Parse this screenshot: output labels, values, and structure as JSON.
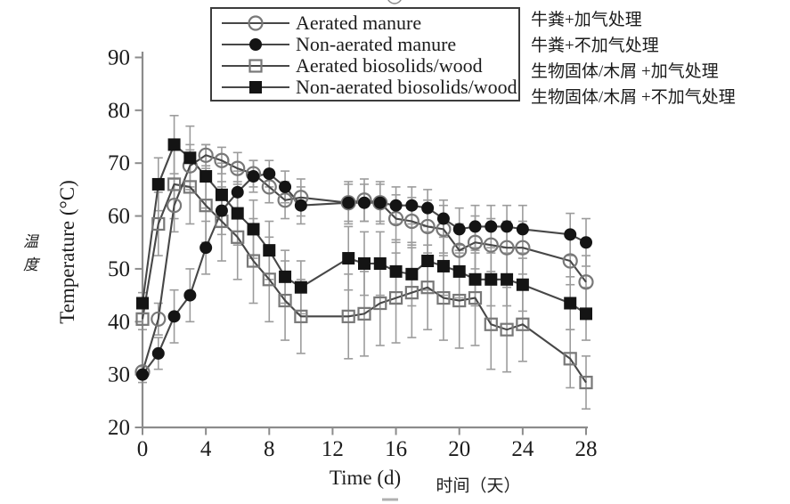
{
  "figure": {
    "y_axis": {
      "label_en": "Temperature (°C)",
      "label_zh": "温度",
      "ticks": [
        20,
        30,
        40,
        50,
        60,
        70,
        80,
        90
      ]
    },
    "x_axis": {
      "label_en": "Time (d)",
      "label_zh": "时间（天）",
      "ticks": [
        0,
        4,
        8,
        12,
        16,
        20,
        24,
        28
      ]
    }
  },
  "annotations": [
    "牛粪+加气处理",
    "牛粪+不加气处理",
    "生物固体/木屑 +加气处理",
    "生物固体/木屑 +不加气处理"
  ],
  "colors": {
    "marker_filled": "#141414",
    "marker_open_stroke": "#787878",
    "line": "#474747",
    "error_bar": "#9c9c9c",
    "axis": "#8c8c8c",
    "text": "#1c1c1c"
  },
  "chart_data": {
    "type": "line",
    "title": "",
    "xlabel": "Time (d)",
    "ylabel": "Temperature (°C)",
    "xlim": [
      0,
      28
    ],
    "ylim": [
      20,
      90
    ],
    "grid": false,
    "legend_position": "top-center-boxed",
    "x": [
      0,
      1,
      2,
      3,
      4,
      5,
      6,
      7,
      8,
      9,
      10,
      13,
      14,
      15,
      16,
      17,
      18,
      19,
      20,
      21,
      22,
      23,
      24,
      27,
      28
    ],
    "series": [
      {
        "name": "Aerated manure",
        "marker": "circle-open",
        "values": [
          30.5,
          40.5,
          62,
          69.5,
          71.5,
          70.5,
          69,
          68,
          65.5,
          63,
          63.5,
          62.5,
          63,
          62.5,
          59.5,
          59,
          58,
          57.5,
          53.5,
          55,
          54.5,
          54,
          54,
          51.5,
          47.5
        ],
        "err": [
          1,
          3,
          5,
          4,
          2,
          2.5,
          3,
          2.5,
          3,
          3.5,
          3.5,
          4,
          4,
          4,
          4.5,
          4.5,
          5,
          4.5,
          5,
          5,
          5,
          5,
          5,
          4.5,
          5
        ]
      },
      {
        "name": "Non-aerated manure",
        "marker": "circle-filled",
        "values": [
          30,
          34,
          41,
          45,
          54,
          61,
          64.5,
          67.5,
          68,
          65.5,
          62,
          62.5,
          62.5,
          62.5,
          62,
          62,
          61.5,
          59.5,
          57.5,
          58,
          58,
          58,
          57.5,
          56.5,
          55
        ],
        "err": [
          1.5,
          3,
          5,
          5,
          5,
          4.5,
          4,
          3,
          2.5,
          3,
          3.5,
          3.5,
          3.5,
          3.5,
          3.5,
          3.5,
          3.5,
          3.5,
          4,
          4,
          4,
          4,
          4.5,
          4,
          4.5
        ]
      },
      {
        "name": "Aerated biosolids/wood",
        "marker": "square-open",
        "values": [
          40.5,
          58.5,
          66,
          65.5,
          62,
          59,
          56,
          51.5,
          48,
          44,
          41,
          41,
          41.5,
          43.5,
          44.5,
          45.5,
          46.5,
          44.5,
          44,
          44.5,
          39.5,
          38.5,
          39.5,
          33,
          28.5
        ],
        "err": [
          2,
          6,
          6.5,
          7,
          7,
          7.5,
          8,
          8,
          8,
          7.5,
          7,
          8,
          8,
          8,
          8.5,
          8.5,
          8,
          8,
          9,
          9,
          8.5,
          8,
          7,
          5.5,
          5
        ]
      },
      {
        "name": "Non-aerated biosolids/wood",
        "marker": "square-filled",
        "values": [
          43.5,
          66,
          73.5,
          71,
          67.5,
          64,
          60.5,
          57.5,
          53.5,
          48.5,
          46.5,
          52,
          51,
          51,
          49.5,
          49,
          51.5,
          50.5,
          49.5,
          48,
          48,
          48,
          47,
          43.5,
          41.5
        ],
        "err": [
          2,
          5,
          5.5,
          6,
          6,
          6,
          6,
          5.5,
          5.5,
          5,
          5,
          6,
          6,
          6,
          6,
          6,
          5.5,
          5.5,
          5,
          5,
          5,
          5,
          5,
          5,
          5
        ]
      }
    ]
  }
}
